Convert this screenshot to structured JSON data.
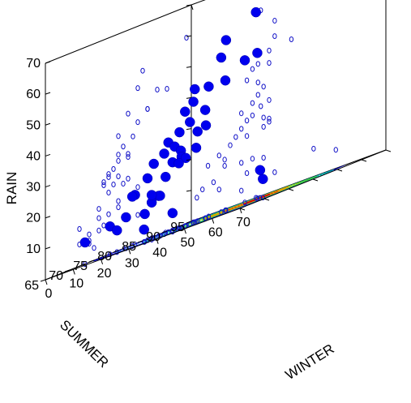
{
  "chart_data": {
    "type": "scatter",
    "subtype": "3d-scatter-with-wall-projections-and-floor-contour",
    "title": "",
    "axes": {
      "x": {
        "label": "WINTER",
        "range": [
          0,
          70
        ],
        "ticks": [
          0,
          10,
          20,
          30,
          40,
          50,
          60,
          70
        ]
      },
      "y": {
        "label": "SUMMER",
        "range": [
          65,
          95
        ],
        "ticks": [
          65,
          70,
          75,
          80,
          85,
          90,
          95
        ]
      },
      "z": {
        "label": "RAIN",
        "range": [
          0,
          70
        ],
        "ticks": [
          10,
          20,
          30,
          40,
          50,
          60,
          70
        ]
      }
    },
    "colors": {
      "points": "#0000ee",
      "projections": "#1414c8",
      "contour_levels": [
        "#0000cc",
        "#1c5fd8",
        "#00a0c8",
        "#00b894",
        "#3cc83c",
        "#a0c800",
        "#e0a000",
        "#e05000",
        "#d00000"
      ]
    },
    "series": [
      {
        "points": [
          {
            "x": 25,
            "y": 94,
            "z": 60
          },
          {
            "x": 28,
            "y": 90,
            "z": 46
          },
          {
            "x": 30,
            "y": 85,
            "z": 55
          },
          {
            "x": 30,
            "y": 84,
            "z": 50
          },
          {
            "x": 28,
            "y": 86,
            "z": 42
          },
          {
            "x": 36,
            "y": 88,
            "z": 47
          },
          {
            "x": 22,
            "y": 86,
            "z": 42
          },
          {
            "x": 24,
            "y": 82,
            "z": 43
          },
          {
            "x": 20,
            "y": 84,
            "z": 39
          },
          {
            "x": 24,
            "y": 80,
            "z": 37
          },
          {
            "x": 26,
            "y": 83,
            "z": 35
          },
          {
            "x": 24,
            "y": 81,
            "z": 33
          },
          {
            "x": 22,
            "y": 80,
            "z": 31
          },
          {
            "x": 25,
            "y": 82,
            "z": 29
          },
          {
            "x": 28,
            "y": 82,
            "z": 30
          },
          {
            "x": 18,
            "y": 80,
            "z": 29
          },
          {
            "x": 20,
            "y": 78,
            "z": 26
          },
          {
            "x": 22,
            "y": 79,
            "z": 27
          },
          {
            "x": 26,
            "y": 78,
            "z": 25
          },
          {
            "x": 18,
            "y": 77,
            "z": 24
          },
          {
            "x": 28,
            "y": 77,
            "z": 23
          },
          {
            "x": 26,
            "y": 79,
            "z": 22
          },
          {
            "x": 16,
            "y": 82,
            "z": 22
          },
          {
            "x": 20,
            "y": 81,
            "z": 21
          },
          {
            "x": 14,
            "y": 78,
            "z": 20
          },
          {
            "x": 10,
            "y": 84,
            "z": 18
          },
          {
            "x": 6,
            "y": 80,
            "z": 16
          },
          {
            "x": 12,
            "y": 76,
            "z": 16
          },
          {
            "x": 18,
            "y": 78,
            "z": 13
          },
          {
            "x": 22,
            "y": 76,
            "z": 13
          },
          {
            "x": 8,
            "y": 77,
            "z": 10
          },
          {
            "x": 26,
            "y": 72,
            "z": 12
          },
          {
            "x": 4,
            "y": 76,
            "z": 9
          },
          {
            "x": 20,
            "y": 74,
            "z": 9
          },
          {
            "x": 10,
            "y": 74,
            "z": 7
          },
          {
            "x": 2,
            "y": 72,
            "z": 7
          },
          {
            "x": 30,
            "y": 74,
            "z": 6
          },
          {
            "x": 18,
            "y": 75,
            "z": 4
          },
          {
            "x": 52,
            "y": 80,
            "z": 6
          },
          {
            "x": 44,
            "y": 84,
            "z": 9
          },
          {
            "x": 12,
            "y": 80,
            "z": 14
          },
          {
            "x": 28,
            "y": 80,
            "z": 24
          }
        ]
      }
    ],
    "floor_contour": {
      "x_variable": "WINTER",
      "y_variable": "SUMMER",
      "peak": {
        "x": 44,
        "y": 84
      }
    },
    "grid": false
  }
}
